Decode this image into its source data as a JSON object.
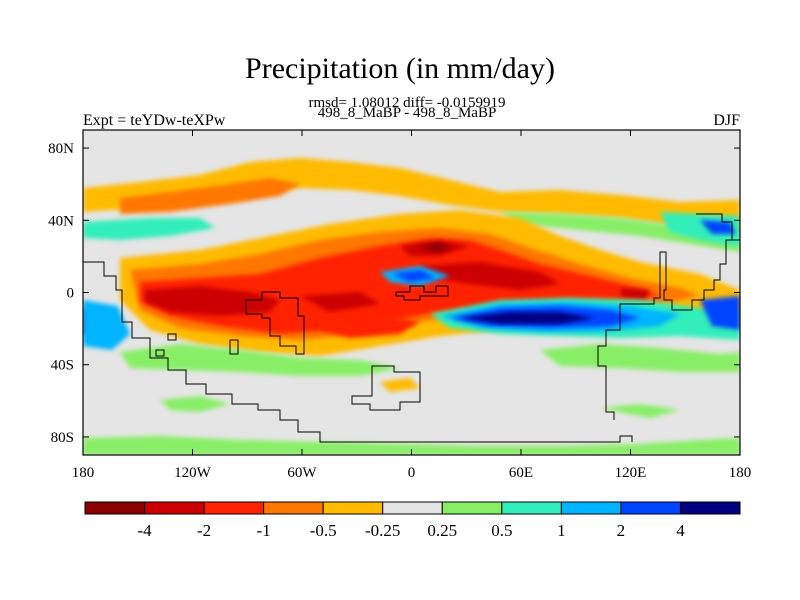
{
  "title": "Precipitation (in mm/day)",
  "stats_line": "rmsd= 1.08012 diff= -0.0159919",
  "subtitle": "498_8_MaBP - 498_8_MaBP",
  "left_label": "Expt = teYDw-teXPw",
  "right_label": "DJF",
  "map": {
    "projection": "cylindrical equidistant",
    "lon_range": [
      -180,
      180
    ],
    "lat_range": [
      -90,
      90
    ],
    "background_color": "#e5e5e5",
    "x_ticks": [
      {
        "value": -180,
        "label": "180"
      },
      {
        "value": -120,
        "label": "120W"
      },
      {
        "value": -60,
        "label": "60W"
      },
      {
        "value": 0,
        "label": "0"
      },
      {
        "value": 60,
        "label": "60E"
      },
      {
        "value": 120,
        "label": "120E"
      },
      {
        "value": 180,
        "label": "180"
      }
    ],
    "y_ticks": [
      {
        "value": 80,
        "label": "80N"
      },
      {
        "value": 40,
        "label": "40N"
      },
      {
        "value": 0,
        "label": "0"
      },
      {
        "value": -40,
        "label": "40S"
      },
      {
        "value": -80,
        "label": "80S"
      }
    ]
  },
  "colorbar": {
    "colors": [
      "#8b0000",
      "#cc0000",
      "#ff2200",
      "#ff7700",
      "#ffbb00",
      "#e5e5e5",
      "#88ee66",
      "#33eebb",
      "#00b4ff",
      "#0044ff",
      "#000080"
    ],
    "labels": [
      "-4",
      "-2",
      "-1",
      "-0.5",
      "-0.25",
      "0.25",
      "0.5",
      "1",
      "2",
      "4"
    ]
  }
}
